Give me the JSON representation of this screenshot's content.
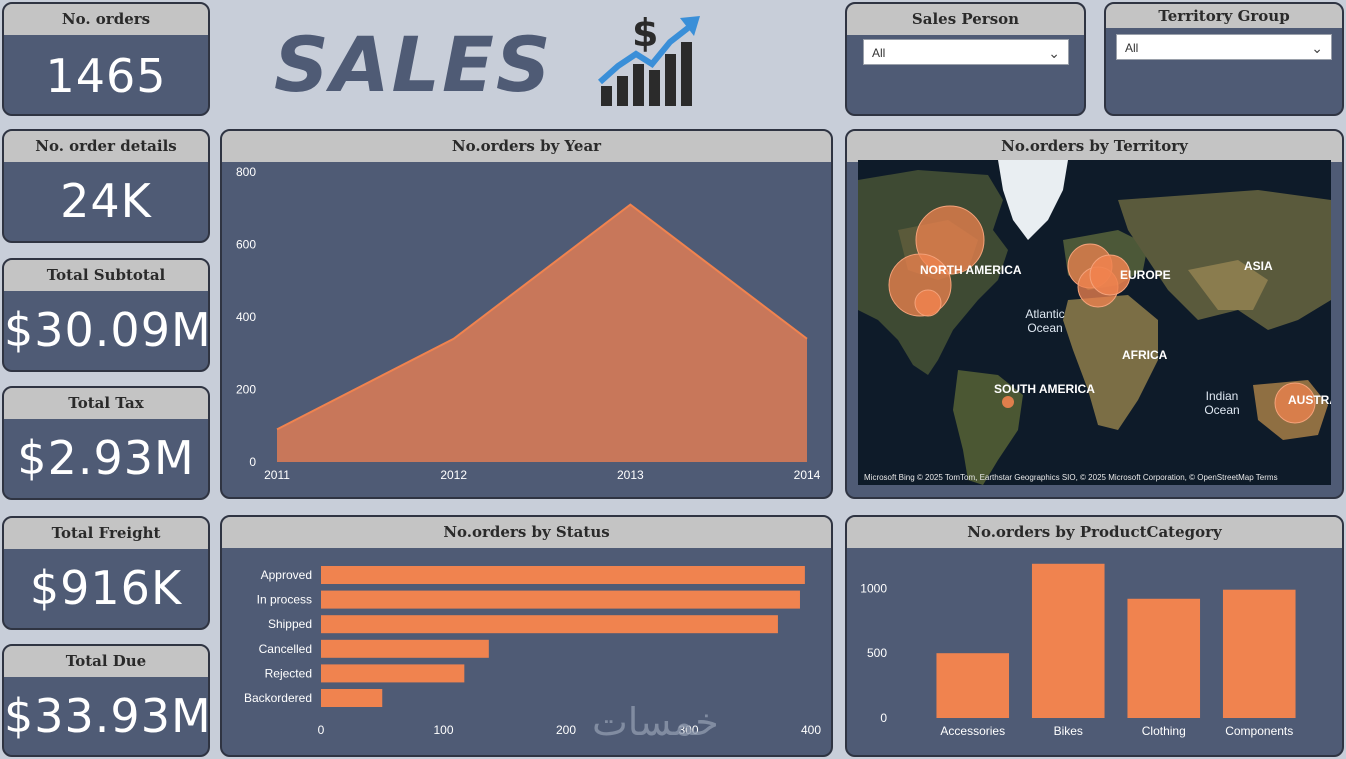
{
  "header": {
    "title": "SALES",
    "logo_icon": "dollar-chart-icon"
  },
  "kpis": [
    {
      "label": "No. orders",
      "value": "1465"
    },
    {
      "label": "No. order details",
      "value": "24K"
    },
    {
      "label": "Total Subtotal",
      "value": "$30.09M"
    },
    {
      "label": "Total Tax",
      "value": "$2.93M"
    },
    {
      "label": "Total Freight",
      "value": "$916K"
    },
    {
      "label": "Total Due",
      "value": "$33.93M"
    }
  ],
  "slicers": {
    "sales_person": {
      "label": "Sales Person",
      "value": "All"
    },
    "territory_group": {
      "label": "Territory Group",
      "value": "All"
    }
  },
  "map": {
    "title": "No.orders by Territory",
    "labels": {
      "north_america": "NORTH AMERICA",
      "europe": "EUROPE",
      "asia": "ASIA",
      "africa": "AFRICA",
      "south_america": "SOUTH AMERICA",
      "australia": "AUSTRA",
      "atlantic": "Atlantic Ocean",
      "indian": "Indian Ocean"
    },
    "attribution": "Microsoft Bing   © 2025 TomTom, Earthstar Geographics SIO, © 2025 Microsoft Corporation, © OpenStreetMap  Terms"
  },
  "watermark": "خمسات",
  "colors": {
    "accent": "#f0834f",
    "panel": "#4f5b75",
    "header": "#c4c4c4",
    "background": "#c8ced9"
  },
  "chart_data": [
    {
      "type": "area",
      "title": "No.orders by Year",
      "x": [
        "2011",
        "2012",
        "2013",
        "2014"
      ],
      "values": [
        90,
        340,
        710,
        340
      ],
      "ylim": [
        0,
        800
      ],
      "yticks": [
        "0",
        "200",
        "400",
        "600",
        "800"
      ],
      "grid": false
    },
    {
      "type": "bar",
      "orientation": "horizontal",
      "title": "No.orders by Status",
      "categories": [
        "Approved",
        "In process",
        "Shipped",
        "Cancelled",
        "Rejected",
        "Backordered"
      ],
      "values": [
        395,
        391,
        373,
        137,
        117,
        50
      ],
      "xlim": [
        0,
        400
      ],
      "xticks": [
        "0",
        "100",
        "200",
        "300",
        "400"
      ]
    },
    {
      "type": "bar",
      "title": "No.orders by ProductCategory",
      "categories": [
        "Accessories",
        "Bikes",
        "Clothing",
        "Components"
      ],
      "values": [
        500,
        1190,
        920,
        990
      ],
      "ylim": [
        0,
        1250
      ],
      "yticks": [
        "0",
        "500",
        "1000"
      ]
    }
  ]
}
